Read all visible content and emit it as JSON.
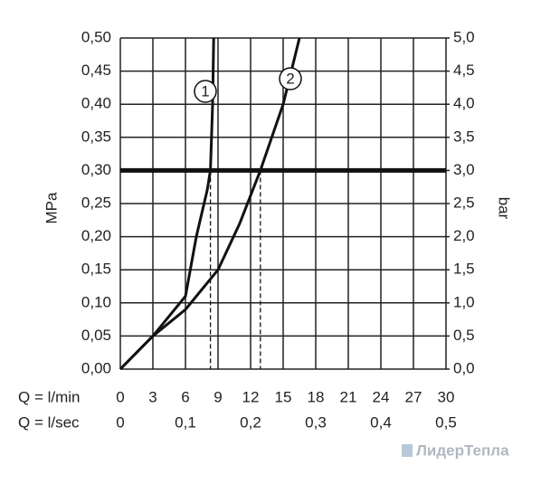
{
  "chart_data": {
    "type": "line",
    "x_label": "Q = l/min",
    "x2_label": "Q = l/sec",
    "ylabel": "MPa",
    "y2label": "bar",
    "xlim": [
      0,
      30
    ],
    "xticks": [
      0,
      3,
      6,
      9,
      12,
      15,
      18,
      21,
      24,
      27,
      30
    ],
    "x2lim": [
      0,
      0.5
    ],
    "x2ticks": [
      0,
      {
        "value": 0.1,
        "label": "0,1"
      },
      {
        "value": 0.2,
        "label": "0,2"
      },
      {
        "value": 0.3,
        "label": "0,3"
      },
      {
        "value": 0.4,
        "label": "0,4"
      },
      {
        "value": 0.5,
        "label": "0,5"
      }
    ],
    "ylim": [
      0,
      0.5
    ],
    "yticks": [
      {
        "value": 0,
        "label": "0,00"
      },
      {
        "value": 0.05,
        "label": "0,05"
      },
      {
        "value": 0.1,
        "label": "0,10"
      },
      {
        "value": 0.15,
        "label": "0,15"
      },
      {
        "value": 0.2,
        "label": "0,20"
      },
      {
        "value": 0.25,
        "label": "0,25"
      },
      {
        "value": 0.3,
        "label": "0,30"
      },
      {
        "value": 0.35,
        "label": "0,35"
      },
      {
        "value": 0.4,
        "label": "0,40"
      },
      {
        "value": 0.45,
        "label": "0,45"
      },
      {
        "value": 0.5,
        "label": "0,50"
      }
    ],
    "y2lim": [
      0,
      5
    ],
    "y2ticks": [
      {
        "value": 0,
        "label": "0,0"
      },
      {
        "value": 0.5,
        "label": "0,5"
      },
      {
        "value": 1,
        "label": "1,0"
      },
      {
        "value": 1.5,
        "label": "1,5"
      },
      {
        "value": 2,
        "label": "2,0"
      },
      {
        "value": 2.5,
        "label": "2,5"
      },
      {
        "value": 3,
        "label": "3,0"
      },
      {
        "value": 3.5,
        "label": "3,5"
      },
      {
        "value": 4,
        "label": "4,0"
      },
      {
        "value": 4.5,
        "label": "4,5"
      },
      {
        "value": 5,
        "label": "5,0"
      }
    ],
    "grid": true,
    "reference_line": 0.3,
    "drops": [
      {
        "x": 8.3,
        "y": 0.3
      },
      {
        "x": 12.9,
        "y": 0.3
      }
    ],
    "series": [
      {
        "name": "1",
        "color": "#111111",
        "x": [
          0,
          3,
          6,
          7,
          8,
          8.3,
          8.5,
          8.6
        ],
        "values": [
          0,
          0.05,
          0.11,
          0.2,
          0.27,
          0.3,
          0.4,
          0.5
        ]
      },
      {
        "name": "2",
        "color": "#111111",
        "x": [
          0,
          3,
          6,
          9,
          11,
          12.9,
          15,
          16.5
        ],
        "values": [
          0,
          0.05,
          0.09,
          0.15,
          0.22,
          0.3,
          0.4,
          0.5
        ]
      }
    ]
  },
  "watermark": "ЛидерТепла"
}
